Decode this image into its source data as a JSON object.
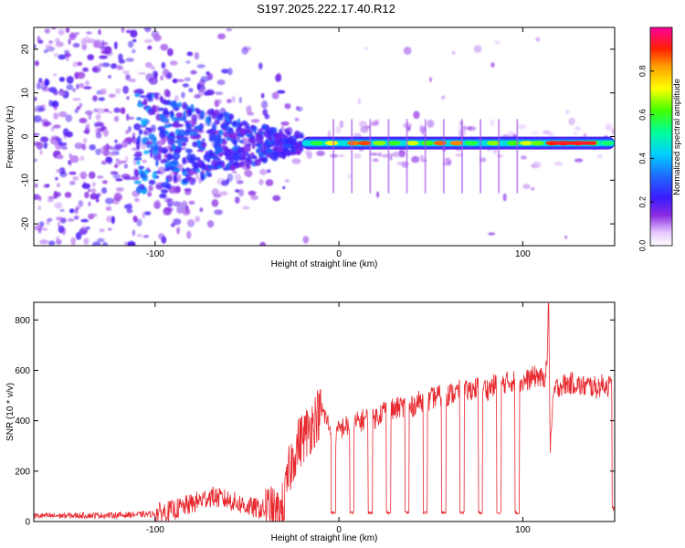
{
  "figure": {
    "title": "S197.2025.222.17.40.R12"
  },
  "chart_data": [
    {
      "type": "heatmap",
      "xlabel": "Height of straight line (km)",
      "ylabel": "Frequency (Hz)",
      "xlim": [
        -166,
        150
      ],
      "ylim": [
        -25,
        25
      ],
      "xticks": [
        -100,
        0,
        100
      ],
      "yticks": [
        -20,
        -10,
        0,
        10,
        20
      ],
      "colorbar": {
        "label": "Normalized spectral amplitude",
        "range": [
          0,
          1
        ],
        "ticks": [
          0.0,
          0.2,
          0.4,
          0.6,
          0.8
        ]
      },
      "features": {
        "noise_region_km": [
          -166,
          -110
        ],
        "transition_region_km": [
          -110,
          -20
        ],
        "carrier_line_km": [
          -20,
          150
        ],
        "carrier_freq_hz": -1.5,
        "dropout_heights_km": [
          -3,
          7,
          17,
          27,
          37,
          47,
          57,
          67,
          77,
          87,
          97
        ]
      }
    },
    {
      "type": "line",
      "xlabel": "Height of straight line (km)",
      "ylabel": "SNR (10 * v/v)",
      "xlim": [
        -166,
        150
      ],
      "ylim": [
        0,
        870
      ],
      "xticks": [
        -100,
        0,
        100
      ],
      "yticks": [
        0,
        200,
        400,
        600,
        800
      ],
      "series": [
        {
          "name": "SNR",
          "color": "#e8282e",
          "x": [
            -166,
            -140,
            -120,
            -100,
            -90,
            -80,
            -70,
            -60,
            -50,
            -40,
            -33,
            -30,
            -27,
            -24,
            -21,
            -18,
            -15,
            -12,
            -9,
            -6,
            -3,
            0,
            3,
            6,
            9,
            12,
            15,
            18,
            21,
            24,
            27,
            30,
            33,
            36,
            39,
            42,
            45,
            48,
            51,
            54,
            57,
            60,
            63,
            66,
            69,
            72,
            75,
            78,
            81,
            84,
            87,
            90,
            93,
            96,
            99,
            102,
            105,
            108,
            111,
            113,
            114,
            115,
            117,
            120,
            124,
            128,
            132,
            136,
            140,
            144,
            148,
            150
          ],
          "y": [
            22,
            24,
            25,
            30,
            45,
            70,
            100,
            85,
            60,
            45,
            20,
            60,
            200,
            280,
            320,
            350,
            380,
            420,
            440,
            390,
            330,
            360,
            380,
            370,
            390,
            400,
            410,
            400,
            420,
            440,
            450,
            440,
            455,
            460,
            450,
            470,
            480,
            470,
            490,
            500,
            495,
            505,
            510,
            520,
            515,
            525,
            530,
            535,
            525,
            540,
            545,
            550,
            555,
            560,
            550,
            560,
            570,
            580,
            560,
            600,
            860,
            300,
            520,
            540,
            545,
            550,
            535,
            540,
            530,
            545,
            535,
            540
          ]
        }
      ],
      "dropouts": {
        "heights_km": [
          -3,
          7,
          17,
          27,
          37,
          47,
          57,
          67,
          77,
          87,
          97
        ],
        "floor_value": 30
      }
    }
  ]
}
